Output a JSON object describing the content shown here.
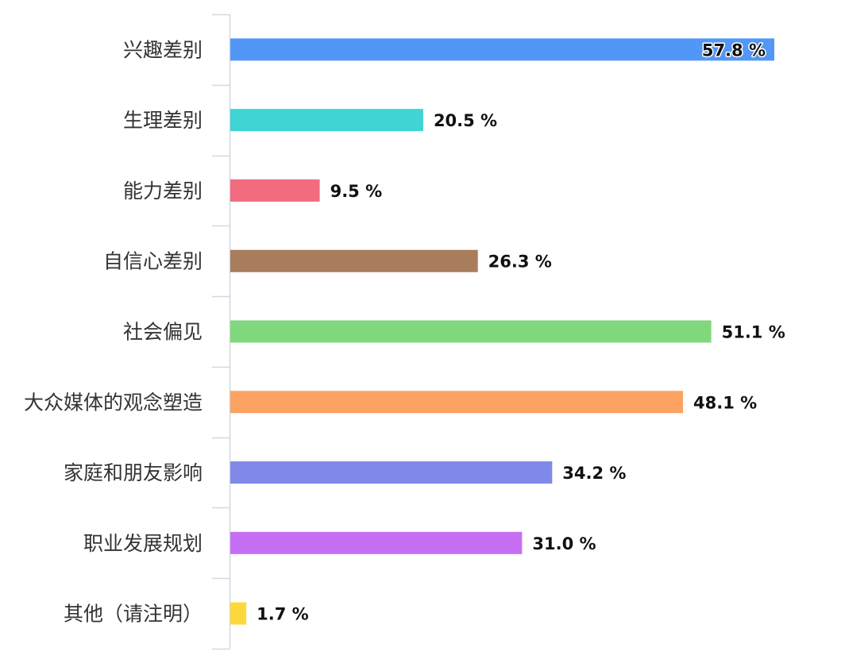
{
  "chart_data": {
    "type": "bar",
    "orientation": "horizontal",
    "categories": [
      "兴趣差别",
      "生理差别",
      "能力差别",
      "自信心差别",
      "社会偏见",
      "大众媒体的观念塑造",
      "家庭和朋友影响",
      "职业发展规划",
      "其他（请注明）"
    ],
    "values": [
      57.8,
      20.5,
      9.5,
      26.3,
      51.1,
      48.1,
      34.2,
      31.0,
      1.7
    ],
    "value_labels": [
      "57.8 %",
      "20.5 %",
      "9.5 %",
      "26.3 %",
      "51.1 %",
      "48.1 %",
      "34.2 %",
      "31.0 %",
      "1.7 %"
    ],
    "unit": "%",
    "colors": [
      "#5297f7",
      "#40d4d4",
      "#f06c7e",
      "#a87d5c",
      "#80d77c",
      "#fca261",
      "#8089e8",
      "#c66ff5",
      "#fcd93b"
    ],
    "axis_color": "#d3d8e3",
    "xlim": [
      0,
      57.8
    ],
    "grid": false,
    "legend": "none"
  }
}
